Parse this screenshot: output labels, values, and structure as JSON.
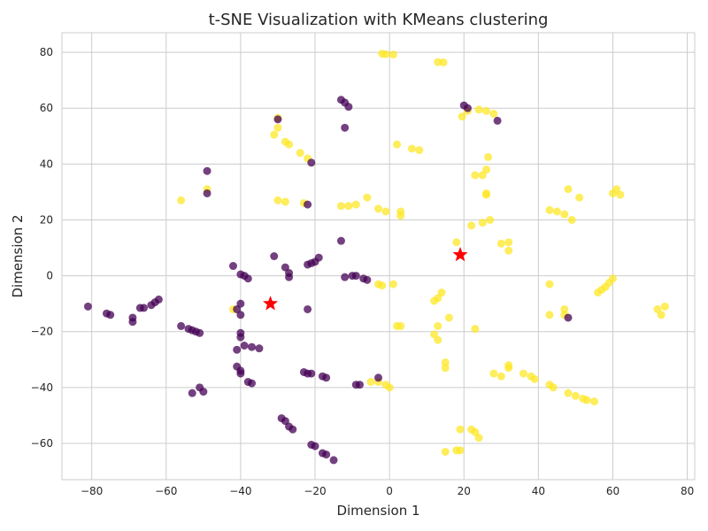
{
  "chart_data": {
    "type": "scatter",
    "title": "t-SNE Visualization with KMeans clustering",
    "xlabel": "Dimension 1",
    "ylabel": "Dimension 2",
    "xlim": [
      -88,
      82
    ],
    "ylim": [
      -73,
      87
    ],
    "xticks": [
      -80,
      -60,
      -40,
      -20,
      0,
      20,
      40,
      60,
      80
    ],
    "yticks": [
      -60,
      -40,
      -20,
      0,
      20,
      40,
      60,
      80
    ],
    "grid": true,
    "colors": {
      "cluster_0": "#440154",
      "cluster_1": "#fde725",
      "centroid": "#ff0000",
      "grid": "#cccccc",
      "spine": "#cccccc"
    },
    "series": [
      {
        "cluster": 1,
        "color": "#fde725",
        "points": [
          [
            -2,
            79.5
          ],
          [
            -1,
            79.3
          ],
          [
            1,
            79.2
          ],
          [
            13,
            76.5
          ],
          [
            14.5,
            76.4
          ],
          [
            19.5,
            57
          ],
          [
            21,
            59
          ],
          [
            24,
            59.5
          ],
          [
            26,
            59
          ],
          [
            28,
            58
          ],
          [
            -30,
            56.5
          ],
          [
            -30,
            53
          ],
          [
            -31,
            50.5
          ],
          [
            -28,
            48
          ],
          [
            -27,
            47
          ],
          [
            -24,
            44
          ],
          [
            -22,
            42
          ],
          [
            2,
            47
          ],
          [
            6,
            45.5
          ],
          [
            8,
            45
          ],
          [
            26.5,
            42.5
          ],
          [
            26,
            38
          ],
          [
            25,
            36
          ],
          [
            23,
            36
          ],
          [
            -49,
            31
          ],
          [
            -56,
            27
          ],
          [
            -30,
            27
          ],
          [
            -28,
            26.5
          ],
          [
            -23,
            26
          ],
          [
            -13,
            25
          ],
          [
            -11,
            25
          ],
          [
            -9,
            25.5
          ],
          [
            -6,
            28
          ],
          [
            -3,
            24
          ],
          [
            -1,
            23
          ],
          [
            3,
            23
          ],
          [
            3,
            21.5
          ],
          [
            26,
            29.5
          ],
          [
            26,
            29
          ],
          [
            48,
            31
          ],
          [
            51,
            28
          ],
          [
            60,
            29.5
          ],
          [
            61,
            31
          ],
          [
            62,
            29
          ],
          [
            43,
            23.5
          ],
          [
            45,
            23
          ],
          [
            47,
            22
          ],
          [
            49,
            20
          ],
          [
            27,
            20
          ],
          [
            25,
            19
          ],
          [
            22,
            18
          ],
          [
            18,
            12
          ],
          [
            30,
            11.5
          ],
          [
            32,
            12
          ],
          [
            32,
            9
          ],
          [
            -42,
            -12
          ],
          [
            -3,
            -3
          ],
          [
            -2,
            -3.5
          ],
          [
            1,
            -3
          ],
          [
            14,
            -6
          ],
          [
            13,
            -8
          ],
          [
            12,
            -9
          ],
          [
            16,
            -15
          ],
          [
            2,
            -18
          ],
          [
            3,
            -18
          ],
          [
            13,
            -18
          ],
          [
            12,
            -21
          ],
          [
            13,
            -23
          ],
          [
            23,
            -19
          ],
          [
            43,
            -14
          ],
          [
            43,
            -3
          ],
          [
            47,
            -12
          ],
          [
            47,
            -14
          ],
          [
            56,
            -6
          ],
          [
            57,
            -5
          ],
          [
            58,
            -4
          ],
          [
            59,
            -2.5
          ],
          [
            60,
            -1
          ],
          [
            72,
            -12
          ],
          [
            73,
            -14
          ],
          [
            74,
            -11
          ],
          [
            15,
            -31
          ],
          [
            15,
            -33
          ],
          [
            28,
            -35
          ],
          [
            30,
            -36
          ],
          [
            32,
            -33
          ],
          [
            32,
            -32
          ],
          [
            36,
            -35
          ],
          [
            38,
            -36
          ],
          [
            39,
            -37
          ],
          [
            43,
            -39
          ],
          [
            44,
            -40
          ],
          [
            48,
            -42
          ],
          [
            50,
            -43
          ],
          [
            52,
            -44
          ],
          [
            53,
            -44.5
          ],
          [
            55,
            -45
          ],
          [
            -5,
            -38
          ],
          [
            -3,
            -38
          ],
          [
            -1,
            -39
          ],
          [
            0,
            -40
          ],
          [
            19,
            -55
          ],
          [
            22,
            -55
          ],
          [
            23,
            -56
          ],
          [
            24,
            -58
          ],
          [
            15,
            -63
          ],
          [
            18,
            -62.5
          ],
          [
            19,
            -62.5
          ]
        ]
      },
      {
        "cluster": 0,
        "color": "#440154",
        "points": [
          [
            -13,
            63
          ],
          [
            -12,
            62
          ],
          [
            -11,
            60.5
          ],
          [
            20,
            61
          ],
          [
            21,
            60
          ],
          [
            29,
            55.5
          ],
          [
            -12,
            53
          ],
          [
            -30,
            56
          ],
          [
            -21,
            40.5
          ],
          [
            -49,
            37.5
          ],
          [
            -49,
            29.5
          ],
          [
            -22,
            25.5
          ],
          [
            -42,
            3.5
          ],
          [
            -40,
            0.5
          ],
          [
            -39,
            0
          ],
          [
            -38,
            -1
          ],
          [
            -31,
            7
          ],
          [
            -28,
            3
          ],
          [
            -27,
            1
          ],
          [
            -27,
            -0.5
          ],
          [
            -22,
            4
          ],
          [
            -21,
            4.5
          ],
          [
            -20,
            5
          ],
          [
            -19,
            6.5
          ],
          [
            -13,
            12.5
          ],
          [
            -12,
            -0.5
          ],
          [
            -10,
            0
          ],
          [
            -9,
            0
          ],
          [
            -7,
            -1
          ],
          [
            -6,
            -1.5
          ],
          [
            -81,
            -11
          ],
          [
            -76,
            -13.5
          ],
          [
            -75,
            -14
          ],
          [
            -69,
            -15
          ],
          [
            -69,
            -16.5
          ],
          [
            -67,
            -11.5
          ],
          [
            -66,
            -11.5
          ],
          [
            -64,
            -10.5
          ],
          [
            -63,
            -9.5
          ],
          [
            -62,
            -8.5
          ],
          [
            -56,
            -18
          ],
          [
            -54,
            -19
          ],
          [
            -53,
            -19.5
          ],
          [
            -52,
            -20
          ],
          [
            -51,
            -20.5
          ],
          [
            -41,
            -12
          ],
          [
            -40,
            -10
          ],
          [
            -40,
            -14
          ],
          [
            -40,
            -20.5
          ],
          [
            -40,
            -22
          ],
          [
            -39,
            -25
          ],
          [
            -37,
            -25.5
          ],
          [
            -35,
            -26
          ],
          [
            -41,
            -26.5
          ],
          [
            -22,
            -12
          ],
          [
            -41,
            -32.5
          ],
          [
            -40,
            -34
          ],
          [
            -40,
            -35
          ],
          [
            -38,
            -38
          ],
          [
            -37,
            -38.5
          ],
          [
            -23,
            -34.5
          ],
          [
            -22,
            -35
          ],
          [
            -21,
            -35
          ],
          [
            -18,
            -36
          ],
          [
            -17,
            -36.5
          ],
          [
            -9,
            -39
          ],
          [
            -8,
            -39
          ],
          [
            -3,
            -36.5
          ],
          [
            -53,
            -42
          ],
          [
            -51,
            -40
          ],
          [
            -50,
            -41.5
          ],
          [
            -29,
            -51
          ],
          [
            -28,
            -52
          ],
          [
            -27,
            -54
          ],
          [
            -26,
            -55
          ],
          [
            -21,
            -60.5
          ],
          [
            -20,
            -61
          ],
          [
            -18,
            -63.5
          ],
          [
            -17,
            -64
          ],
          [
            -15,
            -66
          ],
          [
            48,
            -15
          ]
        ]
      }
    ],
    "centroids": [
      [
        -32,
        -10
      ],
      [
        19,
        7.5
      ]
    ]
  }
}
